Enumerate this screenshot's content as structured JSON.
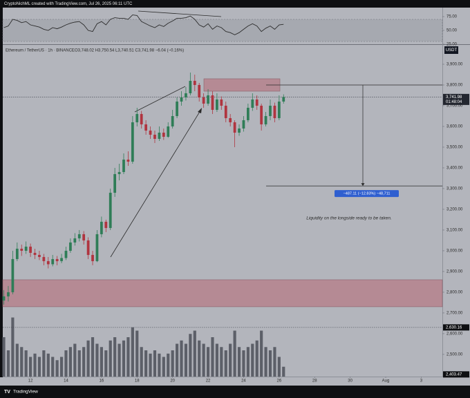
{
  "chart_data": {
    "type": "candlestick",
    "caption": "CryptoNichML created with TradingView.com, Jul 26, 2025 06:11 UTC",
    "symbol": "Ethereum / TetherUS · 1h · BINANCE",
    "ohlc": "O3,748.02 H3,750.54 L3,740.51 C3,741.98 −6.04 (−0.16%)",
    "currency": "USDT",
    "annotation": "Liquidity on the longside ready to be taken.",
    "brand": "TradingView",
    "up_color": "#2f7d57",
    "down_color": "#b0343f",
    "volume_color": "#5c5f68",
    "zone_color": "#b5838d",
    "x": [
      10.5,
      10.75,
      11,
      11.25,
      11.5,
      11.75,
      12,
      12.25,
      12.5,
      12.75,
      13,
      13.25,
      13.5,
      13.75,
      14,
      14.25,
      14.5,
      14.75,
      15,
      15.25,
      15.5,
      15.75,
      16,
      16.25,
      16.5,
      16.75,
      17,
      17.25,
      17.5,
      17.75,
      18,
      18.25,
      18.5,
      18.75,
      19,
      19.25,
      19.5,
      19.75,
      20,
      20.25,
      20.5,
      20.75,
      21,
      21.25,
      21.5,
      21.75,
      22,
      22.25,
      22.5,
      22.75,
      23,
      23.25,
      23.5,
      23.75,
      24,
      24.25,
      24.5,
      24.75,
      25,
      25.25,
      25.5,
      25.75,
      26,
      26.25
    ],
    "open": [
      2760,
      2780,
      2800,
      2960,
      3010,
      3000,
      3020,
      2990,
      2980,
      2970,
      2950,
      2935,
      2960,
      2950,
      2965,
      3000,
      3040,
      3060,
      3080,
      3050,
      2980,
      2950,
      3080,
      3140,
      3110,
      3280,
      3370,
      3380,
      3440,
      3430,
      3620,
      3660,
      3610,
      3580,
      3560,
      3540,
      3570,
      3550,
      3600,
      3650,
      3720,
      3740,
      3760,
      3820,
      3800,
      3740,
      3710,
      3750,
      3680,
      3730,
      3700,
      3640,
      3620,
      3570,
      3590,
      3630,
      3690,
      3730,
      3700,
      3610,
      3650,
      3700,
      3640,
      3720
    ],
    "high": [
      2810,
      2830,
      3000,
      3040,
      3030,
      3045,
      3035,
      3010,
      3000,
      2985,
      2970,
      2980,
      2975,
      2985,
      3020,
      3060,
      3085,
      3100,
      3095,
      3065,
      3000,
      3100,
      3165,
      3150,
      3300,
      3400,
      3420,
      3470,
      3480,
      3650,
      3690,
      3675,
      3630,
      3600,
      3580,
      3600,
      3590,
      3620,
      3680,
      3740,
      3770,
      3790,
      3860,
      3850,
      3810,
      3760,
      3780,
      3770,
      3760,
      3745,
      3720,
      3660,
      3630,
      3610,
      3650,
      3710,
      3760,
      3750,
      3710,
      3670,
      3730,
      3715,
      3750,
      3755
    ],
    "low": [
      2740,
      2755,
      2790,
      2950,
      2975,
      2985,
      2970,
      2960,
      2955,
      2930,
      2915,
      2925,
      2930,
      2940,
      2955,
      2990,
      3025,
      3045,
      3030,
      2960,
      2930,
      2945,
      3065,
      3090,
      3100,
      3260,
      3340,
      3370,
      3410,
      3420,
      3600,
      3590,
      3560,
      3540,
      3520,
      3530,
      3535,
      3545,
      3590,
      3640,
      3700,
      3725,
      3750,
      3770,
      3720,
      3690,
      3700,
      3660,
      3670,
      3680,
      3620,
      3600,
      3500,
      3555,
      3575,
      3620,
      3675,
      3680,
      3580,
      3600,
      3630,
      3620,
      3630,
      3710
    ],
    "close": [
      2780,
      2800,
      2960,
      3010,
      3000,
      3020,
      2990,
      2980,
      2970,
      2950,
      2935,
      2960,
      2950,
      2965,
      3000,
      3040,
      3060,
      3080,
      3050,
      2980,
      2950,
      3080,
      3140,
      3110,
      3280,
      3370,
      3380,
      3440,
      3430,
      3620,
      3660,
      3610,
      3580,
      3560,
      3540,
      3570,
      3550,
      3600,
      3650,
      3720,
      3740,
      3760,
      3820,
      3800,
      3740,
      3710,
      3750,
      3680,
      3730,
      3700,
      3640,
      3620,
      3570,
      3590,
      3630,
      3690,
      3730,
      3700,
      3610,
      3650,
      3700,
      3640,
      3720,
      3741.98
    ],
    "volume": [
      60,
      40,
      90,
      50,
      45,
      40,
      30,
      35,
      30,
      40,
      35,
      30,
      25,
      30,
      40,
      45,
      50,
      40,
      45,
      55,
      60,
      50,
      45,
      40,
      55,
      60,
      50,
      55,
      60,
      75,
      70,
      45,
      40,
      35,
      40,
      35,
      30,
      35,
      40,
      50,
      55,
      50,
      65,
      70,
      55,
      50,
      45,
      60,
      50,
      45,
      40,
      50,
      70,
      45,
      40,
      45,
      50,
      55,
      70,
      45,
      40,
      45,
      30,
      15
    ],
    "volume_lim": [
      0,
      100
    ],
    "xlim": [
      10.44,
      35.19
    ],
    "xticks": [
      12,
      14,
      16,
      18,
      20,
      22,
      24,
      26,
      28,
      30,
      {
        "value": 32,
        "label": "Aug"
      },
      {
        "value": 34,
        "label": "3"
      }
    ],
    "ylim": [
      2393,
      3990
    ],
    "yticks": [
      {
        "value": 2500,
        "label": "2,500.00"
      },
      {
        "value": 2600,
        "label": "2,600.00"
      },
      {
        "value": 2700,
        "label": "2,700.00"
      },
      {
        "value": 2800,
        "label": "2,800.00"
      },
      {
        "value": 2900,
        "label": "2,900.00"
      },
      {
        "value": 3000,
        "label": "3,000.00"
      },
      {
        "value": 3100,
        "label": "3,100.00"
      },
      {
        "value": 3200,
        "label": "3,200.00"
      },
      {
        "value": 3300,
        "label": "3,300.00"
      },
      {
        "value": 3400,
        "label": "3,400.00"
      },
      {
        "value": 3500,
        "label": "3,500.00"
      },
      {
        "value": 3600,
        "label": "3,600.00"
      },
      {
        "value": 3700,
        "label": "3,700.00"
      },
      {
        "value": 3800,
        "label": "3,800.00"
      },
      {
        "value": 3900,
        "label": "3,900.00"
      }
    ],
    "grid": false,
    "price_labels": [
      {
        "value": 3741.98,
        "label": "3,741.98",
        "countdown": "01:48:04"
      },
      {
        "value": 2630.16,
        "label": "2,630.16"
      },
      {
        "value": 2403.47,
        "label": "2,403.47"
      }
    ],
    "zones": [
      {
        "low": 3770,
        "high": 3830
      },
      {
        "low": 2730,
        "high": 2860
      }
    ],
    "measure": {
      "from": 3800,
      "to": 3312.89,
      "label": "−487.11 (−12.83%) −48,711"
    },
    "rsi": {
      "color": "#2b2b2b",
      "values": [
        55,
        58,
        70,
        68,
        64,
        66,
        60,
        58,
        56,
        52,
        50,
        55,
        53,
        56,
        60,
        63,
        65,
        66,
        60,
        50,
        48,
        62,
        66,
        60,
        70,
        73,
        72,
        72,
        70,
        78,
        77,
        66,
        62,
        58,
        55,
        60,
        57,
        63,
        67,
        72,
        72,
        73,
        76,
        70,
        60,
        56,
        62,
        52,
        58,
        55,
        48,
        46,
        42,
        46,
        52,
        58,
        62,
        58,
        48,
        54,
        58,
        52,
        60,
        61
      ],
      "ylim": [
        25,
        90
      ],
      "yticks": [
        {
          "value": 75,
          "label": "75.00"
        },
        {
          "value": 50,
          "label": "50.00"
        },
        {
          "value": 25,
          "label": "25.00"
        }
      ],
      "band": [
        30,
        70
      ]
    }
  }
}
